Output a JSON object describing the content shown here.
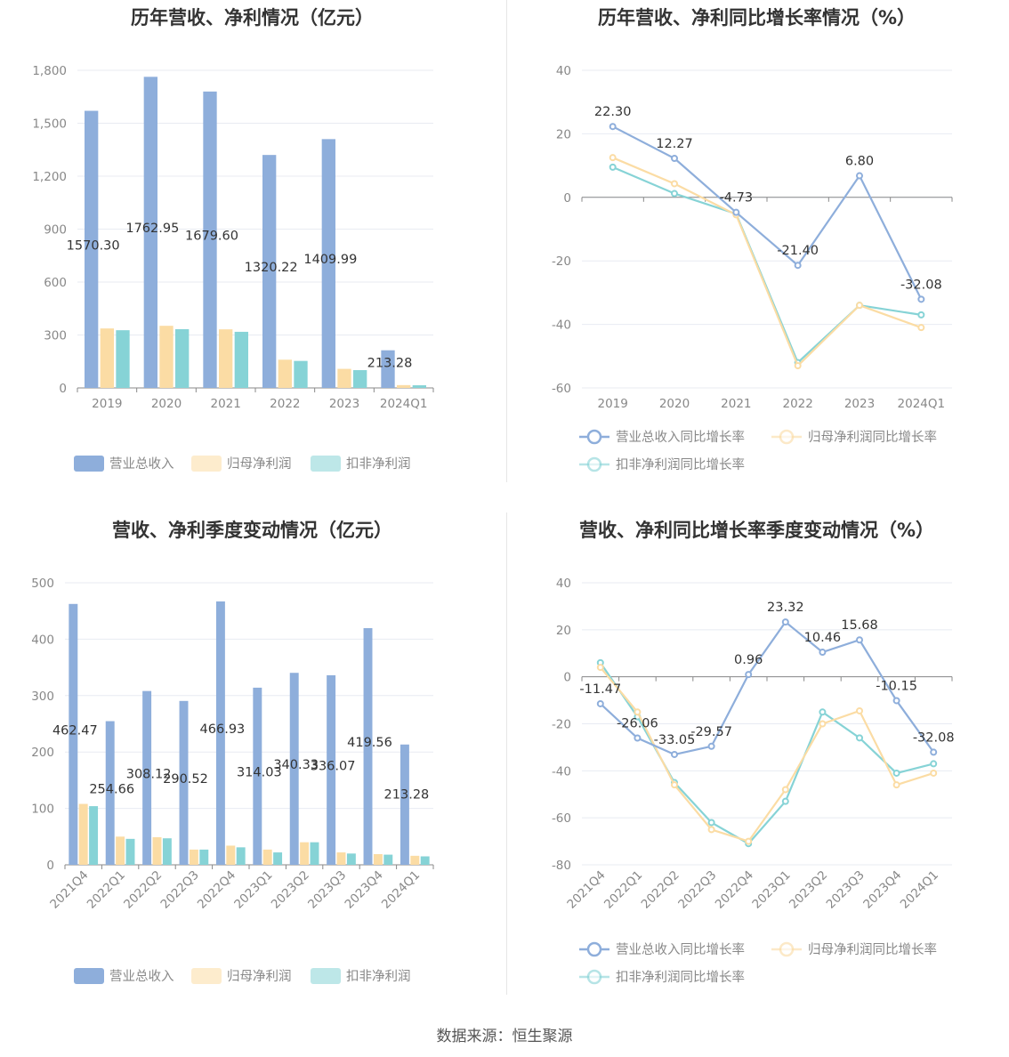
{
  "source": "数据来源：恒生聚源",
  "colors": {
    "revenue": "#8eaedb",
    "netprofit": "#fbdca4",
    "deducted": "#86d3d6",
    "grid": "#e8ebf2",
    "axis": "#999999",
    "zero": "#888888"
  },
  "legend_bar": [
    "营业总收入",
    "归母净利润",
    "扣非净利润"
  ],
  "legend_line": [
    "营业总收入同比增长率",
    "归母净利润同比增长率",
    "扣非净利润同比增长率"
  ],
  "chart_data": [
    {
      "id": "annual-bar",
      "type": "bar",
      "title": "历年营收、净利情况（亿元）",
      "categories": [
        "2019",
        "2020",
        "2021",
        "2022",
        "2023",
        "2024Q1"
      ],
      "yticks": [
        "0",
        "300",
        "600",
        "900",
        "1,200",
        "1,500",
        "1,800"
      ],
      "ylim": [
        0,
        1800
      ],
      "series": [
        {
          "name": "营业总收入",
          "values": [
            1570.3,
            1762.95,
            1679.6,
            1320.22,
            1409.99,
            213.28
          ],
          "labels": [
            "1570.30",
            "1762.95",
            "1679.60",
            "1320.22",
            "1409.99",
            "213.28"
          ]
        },
        {
          "name": "归母净利润",
          "values": [
            337,
            352,
            332,
            160,
            108,
            16
          ]
        },
        {
          "name": "扣非净利润",
          "values": [
            327,
            333,
            318,
            153,
            101,
            15
          ]
        }
      ]
    },
    {
      "id": "annual-line",
      "type": "line",
      "title": "历年营收、净利同比增长率情况（%）",
      "categories": [
        "2019",
        "2020",
        "2021",
        "2022",
        "2023",
        "2024Q1"
      ],
      "yticks": [
        "-60",
        "-40",
        "-20",
        "0",
        "20",
        "40"
      ],
      "ylim": [
        -60,
        40
      ],
      "series": [
        {
          "name": "营业总收入同比增长率",
          "values": [
            22.3,
            12.27,
            -4.73,
            -21.4,
            6.8,
            -32.08
          ],
          "labels": [
            "22.30",
            "12.27",
            "-4.73",
            "-21.40",
            "6.80",
            "-32.08"
          ]
        },
        {
          "name": "归母净利润同比增长率",
          "values": [
            12.5,
            4.3,
            -5.5,
            -53,
            -34,
            -41
          ]
        },
        {
          "name": "扣非净利润同比增长率",
          "values": [
            9.5,
            1.2,
            -5.2,
            -52,
            -34,
            -37
          ]
        }
      ]
    },
    {
      "id": "quarter-bar",
      "type": "bar",
      "title": "营收、净利季度变动情况（亿元）",
      "categories": [
        "2021Q4",
        "2022Q1",
        "2022Q2",
        "2022Q3",
        "2022Q4",
        "2023Q1",
        "2023Q2",
        "2023Q3",
        "2023Q4",
        "2024Q1"
      ],
      "yticks": [
        "0",
        "100",
        "200",
        "300",
        "400",
        "500"
      ],
      "ylim": [
        0,
        500
      ],
      "series": [
        {
          "name": "营业总收入",
          "values": [
            462.47,
            254.66,
            308.12,
            290.52,
            466.93,
            314.03,
            340.33,
            336.07,
            419.56,
            213.28
          ],
          "labels": [
            "462.47",
            "254.66",
            "308.12",
            "290.52",
            "466.93",
            "314.03",
            "340.33",
            "336.07",
            "419.56",
            "213.28"
          ]
        },
        {
          "name": "归母净利润",
          "values": [
            108,
            50,
            49,
            27,
            34,
            27,
            40,
            22,
            19,
            16
          ]
        },
        {
          "name": "扣非净利润",
          "values": [
            104,
            46,
            47,
            27,
            31,
            22,
            40,
            20,
            18,
            15
          ]
        }
      ]
    },
    {
      "id": "quarter-line",
      "type": "line",
      "title": "营收、净利同比增长率季度变动情况（%）",
      "categories": [
        "2021Q4",
        "2022Q1",
        "2022Q2",
        "2022Q3",
        "2022Q4",
        "2023Q1",
        "2023Q2",
        "2023Q3",
        "2023Q4",
        "2024Q1"
      ],
      "yticks": [
        "-80",
        "-60",
        "-40",
        "-20",
        "0",
        "20",
        "40"
      ],
      "ylim": [
        -80,
        40
      ],
      "series": [
        {
          "name": "营业总收入同比增长率",
          "values": [
            -11.47,
            -26.06,
            -33.05,
            -29.57,
            0.96,
            23.32,
            10.46,
            15.68,
            -10.15,
            -32.08
          ],
          "labels": [
            "-11.47",
            "-26.06",
            "-33.05",
            "-29.57",
            "0.96",
            "23.32",
            "10.46",
            "15.68",
            "-10.15",
            "-32.08"
          ]
        },
        {
          "name": "归母净利润同比增长率",
          "values": [
            4,
            -15,
            -46,
            -65,
            -70,
            -48,
            -20,
            -14.5,
            -46,
            -41
          ]
        },
        {
          "name": "扣非净利润同比增长率",
          "values": [
            6,
            -17,
            -45,
            -62,
            -71,
            -53,
            -15,
            -26,
            -41,
            -37
          ]
        }
      ]
    }
  ]
}
